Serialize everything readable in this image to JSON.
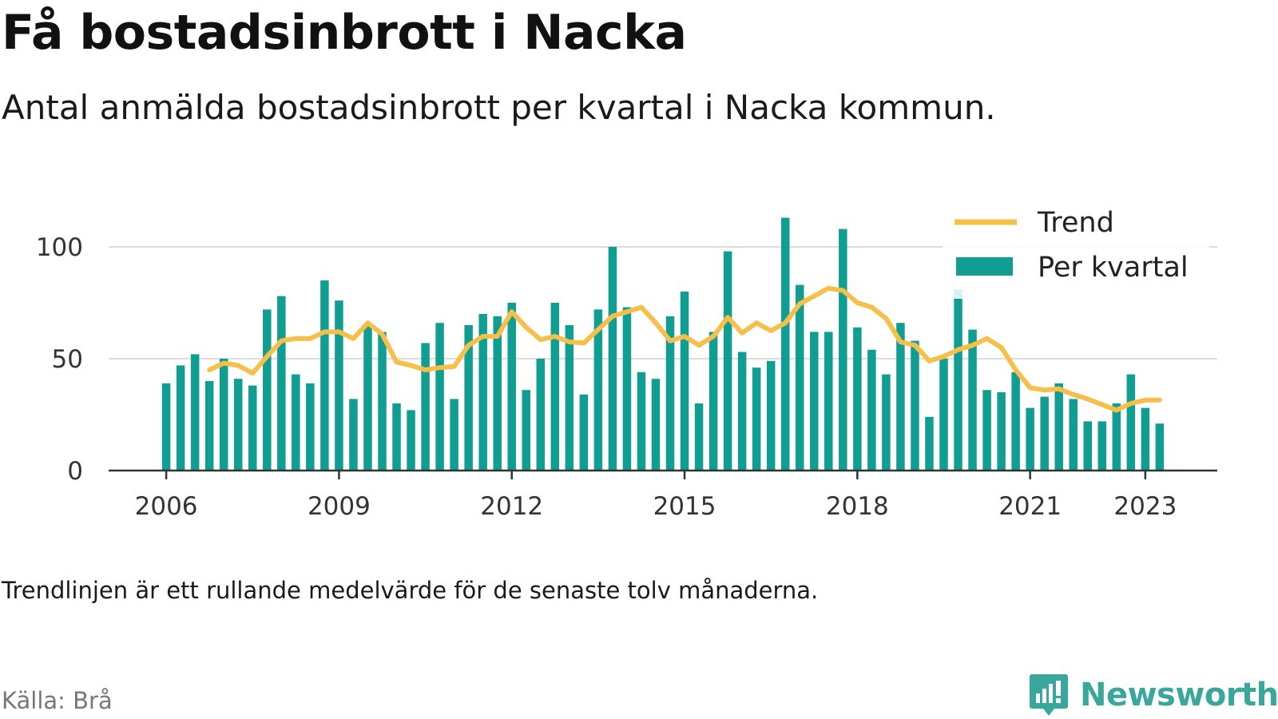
{
  "title": "Få bostadsinbrott i Nacka",
  "subtitle": "Antal anmälda bostadsinbrott per kvartal i Nacka kommun.",
  "note": "Trendlinjen är ett rullande medelvärde för de senaste tolv månaderna.",
  "source": "Källa: Brå",
  "brand": "Newsworthy",
  "colors": {
    "bar": "#109e92",
    "trend": "#f6bf4a",
    "axis": "#333333",
    "grid": "#dddddd",
    "brand": "#3aa79c"
  },
  "chart_data": {
    "type": "bar",
    "grid": true,
    "legend_position": "top-right",
    "ylim": [
      0,
      120
    ],
    "yticks": [
      0,
      50,
      100
    ],
    "xlim": [
      2005.0,
      2024.25
    ],
    "xticks": [
      2006,
      2009,
      2012,
      2015,
      2018,
      2021,
      2023
    ],
    "series": [
      {
        "name": "Per kvartal",
        "kind": "bar",
        "x": [
          2006.0,
          2006.25,
          2006.5,
          2006.75,
          2007.0,
          2007.25,
          2007.5,
          2007.75,
          2008.0,
          2008.25,
          2008.5,
          2008.75,
          2009.0,
          2009.25,
          2009.5,
          2009.75,
          2010.0,
          2010.25,
          2010.5,
          2010.75,
          2011.0,
          2011.25,
          2011.5,
          2011.75,
          2012.0,
          2012.25,
          2012.5,
          2012.75,
          2013.0,
          2013.25,
          2013.5,
          2013.75,
          2014.0,
          2014.25,
          2014.5,
          2014.75,
          2015.0,
          2015.25,
          2015.5,
          2015.75,
          2016.0,
          2016.25,
          2016.5,
          2016.75,
          2017.0,
          2017.25,
          2017.5,
          2017.75,
          2018.0,
          2018.25,
          2018.5,
          2018.75,
          2019.0,
          2019.25,
          2019.5,
          2019.75,
          2020.0,
          2020.25,
          2020.5,
          2020.75,
          2021.0,
          2021.25,
          2021.5,
          2021.75,
          2022.0,
          2022.25,
          2022.5,
          2022.75,
          2023.0,
          2023.25
        ],
        "values": [
          39,
          47,
          52,
          40,
          50,
          41,
          38,
          72,
          78,
          43,
          39,
          85,
          76,
          32,
          65,
          62,
          30,
          27,
          57,
          66,
          32,
          65,
          70,
          69,
          75,
          36,
          50,
          75,
          65,
          34,
          72,
          100,
          73,
          44,
          41,
          69,
          80,
          30,
          62,
          98,
          53,
          46,
          49,
          113,
          83,
          62,
          62,
          108,
          64,
          54,
          43,
          66,
          58,
          24,
          50,
          81,
          63,
          36,
          35,
          44,
          28,
          33,
          39,
          32,
          22,
          22,
          30,
          43,
          28,
          21
        ]
      },
      {
        "name": "Trend",
        "kind": "line",
        "x": [
          2006.75,
          2007.0,
          2007.25,
          2007.5,
          2007.75,
          2008.0,
          2008.25,
          2008.5,
          2008.75,
          2009.0,
          2009.25,
          2009.5,
          2009.75,
          2010.0,
          2010.25,
          2010.5,
          2010.75,
          2011.0,
          2011.25,
          2011.5,
          2011.75,
          2012.0,
          2012.25,
          2012.5,
          2012.75,
          2013.0,
          2013.25,
          2013.5,
          2013.75,
          2014.0,
          2014.25,
          2014.5,
          2014.75,
          2015.0,
          2015.25,
          2015.5,
          2015.75,
          2016.0,
          2016.25,
          2016.5,
          2016.75,
          2017.0,
          2017.25,
          2017.5,
          2017.75,
          2018.0,
          2018.25,
          2018.5,
          2018.75,
          2019.0,
          2019.25,
          2019.5,
          2019.75,
          2020.0,
          2020.25,
          2020.5,
          2020.75,
          2021.0,
          2021.25,
          2021.5,
          2021.75,
          2022.0,
          2022.25,
          2022.5,
          2022.75,
          2023.0,
          2023.25
        ],
        "values": [
          45,
          48,
          47,
          43.5,
          51,
          58,
          59,
          59,
          62,
          62,
          59,
          66,
          61,
          48.5,
          47,
          45,
          46,
          46.5,
          56,
          60,
          60,
          71,
          64,
          58.5,
          60,
          57.5,
          57,
          63,
          69,
          71,
          73,
          66,
          58,
          60,
          56,
          60,
          68.5,
          61.5,
          66,
          62.5,
          66,
          74.5,
          78,
          81.5,
          80.5,
          75,
          73,
          68,
          57.5,
          56,
          49,
          51,
          54,
          56,
          59,
          55,
          45,
          37,
          36,
          36.5,
          34,
          32,
          29.5,
          27,
          30,
          31.5,
          31.5
        ]
      }
    ]
  }
}
